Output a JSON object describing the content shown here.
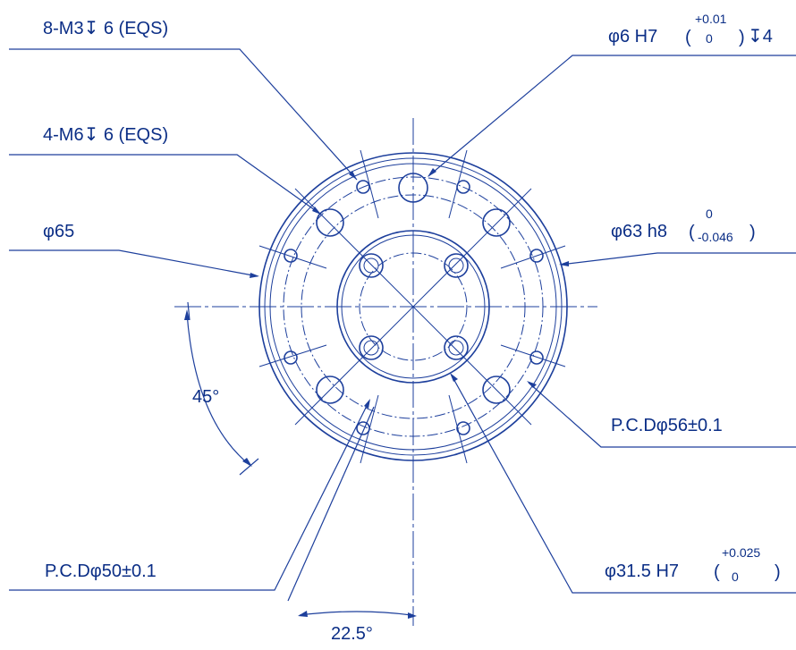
{
  "labels": {
    "m3": "8-M3↧ 6 (EQS)",
    "m6": "4-M6↧ 6 (EQS)",
    "d65": "φ65",
    "d6": "φ6 H7",
    "d6_tol_upper": "+0.01",
    "d6_tol_lower": "0",
    "d6_depth": "↧4",
    "d63": "φ63 h8",
    "d63_tol_upper": "0",
    "d63_tol_lower": "-0.046",
    "pcd56": "P.C.Dφ56±0.1",
    "pcd50": "P.C.Dφ50±0.1",
    "d315": "φ31.5 H7",
    "d315_tol_upper": "+0.025",
    "d315_tol_lower": "0",
    "angle45": "45°",
    "angle225": "22.5°"
  },
  "colors": {
    "line": "#1d3f9c",
    "text": "#0b2e86",
    "background": "#ffffff"
  }
}
